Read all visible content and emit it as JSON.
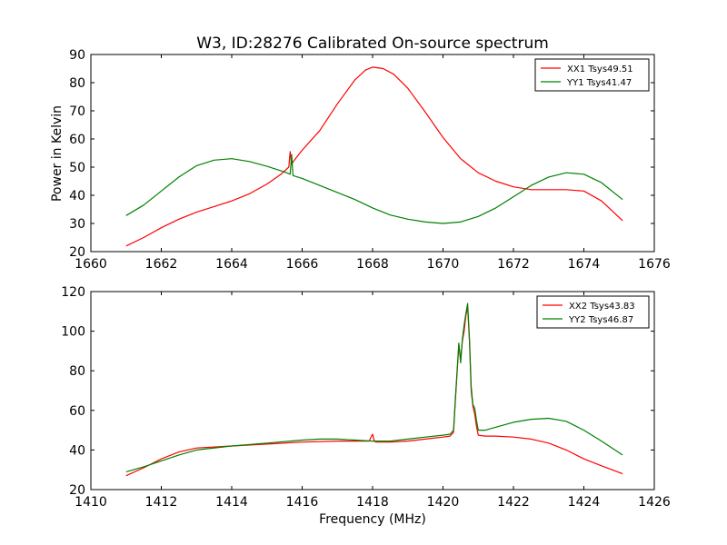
{
  "figure": {
    "title": "W3, ID:28276 Calibrated On-source spectrum",
    "xlabel": "Frequency (MHz)",
    "ylabel": "Power in Kelvin"
  },
  "chart_data": [
    {
      "type": "line",
      "xlim": [
        1660,
        1676
      ],
      "ylim": [
        20,
        90
      ],
      "xticks": [
        "1660",
        "1662",
        "1664",
        "1666",
        "1668",
        "1670",
        "1672",
        "1674",
        "1676"
      ],
      "yticks": [
        "20",
        "30",
        "40",
        "50",
        "60",
        "70",
        "80",
        "90"
      ],
      "grid": false,
      "legend": "top-right",
      "series": [
        {
          "name": "XX1 Tsys49.51",
          "color": "#ff0000",
          "x": [
            1661,
            1661.5,
            1662,
            1662.5,
            1663,
            1663.5,
            1664,
            1664.5,
            1665,
            1665.4,
            1665.62,
            1665.66,
            1665.7,
            1665.75,
            1666,
            1666.5,
            1667,
            1667.5,
            1667.8,
            1668,
            1668.3,
            1668.6,
            1669,
            1669.5,
            1670,
            1670.5,
            1671,
            1671.5,
            1672,
            1672.5,
            1673,
            1673.5,
            1674,
            1674.5,
            1675.1
          ],
          "values": [
            22,
            25,
            28.5,
            31.5,
            34,
            36,
            38,
            40.5,
            44,
            47.5,
            50,
            55.5,
            51,
            52,
            56,
            63,
            72.5,
            81,
            84.5,
            85.5,
            85,
            83,
            78,
            69.5,
            60.5,
            53,
            48,
            45,
            43,
            42,
            42,
            42,
            41.5,
            38,
            31
          ]
        },
        {
          "name": "YY1 Tsys41.47",
          "color": "#008000",
          "x": [
            1661,
            1661.5,
            1662,
            1662.5,
            1663,
            1663.5,
            1664,
            1664.5,
            1665,
            1665.5,
            1665.66,
            1665.7,
            1665.74,
            1666,
            1666.5,
            1667,
            1667.5,
            1668,
            1668.5,
            1669,
            1669.5,
            1670,
            1670.5,
            1671,
            1671.5,
            1672,
            1672.5,
            1673,
            1673.5,
            1674,
            1674.5,
            1675.1
          ],
          "values": [
            32.8,
            36.5,
            41.5,
            46.5,
            50.5,
            52.5,
            53,
            52,
            50.3,
            48.3,
            47.5,
            54.5,
            47,
            46,
            43.5,
            41,
            38.5,
            35.5,
            33,
            31.5,
            30.5,
            30,
            30.5,
            32.5,
            35.5,
            39.5,
            43.5,
            46.5,
            48,
            47.5,
            44.5,
            38.5
          ]
        }
      ]
    },
    {
      "type": "line",
      "xlim": [
        1410,
        1426
      ],
      "ylim": [
        20,
        120
      ],
      "xticks": [
        "1410",
        "1412",
        "1414",
        "1416",
        "1418",
        "1420",
        "1422",
        "1424",
        "1426"
      ],
      "yticks": [
        "20",
        "40",
        "60",
        "80",
        "100",
        "120"
      ],
      "grid": false,
      "legend": "top-right",
      "series": [
        {
          "name": "XX2 Tsys43.83",
          "color": "#ff0000",
          "x": [
            1411,
            1411.5,
            1412,
            1412.5,
            1413,
            1414,
            1415,
            1416,
            1417,
            1417.9,
            1418,
            1418.05,
            1418.1,
            1418.5,
            1419,
            1419.5,
            1420,
            1420.2,
            1420.3,
            1420.35,
            1420.45,
            1420.5,
            1420.55,
            1420.6,
            1420.65,
            1420.7,
            1420.75,
            1420.8,
            1420.85,
            1420.9,
            1420.95,
            1421,
            1421.2,
            1421.5,
            1422,
            1422.5,
            1423,
            1423.5,
            1424,
            1424.5,
            1425.1
          ],
          "values": [
            27,
            31,
            35.5,
            39,
            41,
            42,
            43,
            44,
            44.5,
            44.5,
            48,
            44.5,
            44,
            44,
            44.5,
            45.5,
            46.5,
            47,
            49,
            65,
            93,
            86,
            95,
            100,
            108,
            112,
            95,
            70,
            62,
            58,
            52,
            47.5,
            47,
            47,
            46.5,
            45.5,
            43.5,
            40,
            35.5,
            32,
            28
          ]
        },
        {
          "name": "YY2 Tsys46.87",
          "color": "#008000",
          "x": [
            1411,
            1411.5,
            1412,
            1412.5,
            1413,
            1414,
            1415,
            1416,
            1416.5,
            1417,
            1417.5,
            1418,
            1418.5,
            1419,
            1419.5,
            1420,
            1420.2,
            1420.3,
            1420.35,
            1420.45,
            1420.5,
            1420.55,
            1420.6,
            1420.65,
            1420.7,
            1420.75,
            1420.8,
            1420.85,
            1420.9,
            1420.95,
            1421,
            1421.2,
            1421.5,
            1422,
            1422.5,
            1423,
            1423.5,
            1424,
            1424.5,
            1425.1
          ],
          "values": [
            29,
            31.5,
            34.5,
            37.5,
            40,
            42,
            43.5,
            45,
            45.5,
            45.5,
            45,
            44.5,
            44.5,
            45.5,
            46.5,
            47.5,
            48,
            50,
            66,
            94,
            84,
            96,
            103,
            109,
            114,
            96,
            72,
            63,
            61,
            55,
            50,
            50,
            51.5,
            54,
            55.5,
            56,
            54.5,
            50,
            44.5,
            37.5
          ]
        }
      ]
    }
  ]
}
